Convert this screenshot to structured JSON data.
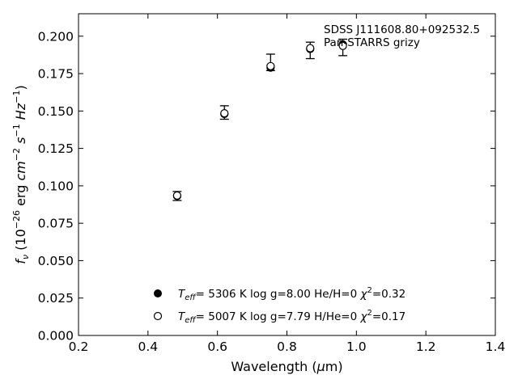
{
  "chart_data": {
    "type": "scatter",
    "title": "",
    "xlabel": "Wavelength (μm)",
    "ylabel": "f_ν (10^-26 erg cm^-2 s^-1 Hz^-1)",
    "xlim": [
      0.2,
      1.4
    ],
    "ylim": [
      0.0,
      0.215
    ],
    "xticks": [
      0.2,
      0.4,
      0.6,
      0.8,
      1.0,
      1.2,
      1.4
    ],
    "xtick_labels": [
      "0.2",
      "0.4",
      "0.6",
      "0.8",
      "1.0",
      "1.2",
      "1.4"
    ],
    "yticks": [
      0.0,
      0.025,
      0.05,
      0.075,
      0.1,
      0.125,
      0.15,
      0.175,
      0.2
    ],
    "ytick_labels": [
      "0.000",
      "0.025",
      "0.050",
      "0.075",
      "0.100",
      "0.125",
      "0.150",
      "0.175",
      "0.200"
    ],
    "grid": false,
    "annotation": [
      "SDSS J111608.80+092532.5",
      "Pan-STARRS grizy"
    ],
    "observed": {
      "x": [
        0.484,
        0.62,
        0.753,
        0.867,
        0.961
      ],
      "y": [
        0.0932,
        0.149,
        0.18,
        0.192,
        0.194
      ],
      "yerr_low": [
        0.003,
        0.0045,
        0.003,
        0.007,
        0.007
      ],
      "yerr_high": [
        0.003,
        0.0045,
        0.008,
        0.004,
        0.004
      ]
    },
    "series": [
      {
        "marker": "filled",
        "label": "T_eff= 5306 K  log g=8.00  He/H=0  χ²=0.32",
        "x": [
          0.484,
          0.62,
          0.753,
          0.867,
          0.961
        ],
        "y": [
          0.0932,
          0.148,
          0.179,
          0.1915,
          0.1945
        ]
      },
      {
        "marker": "open",
        "label": "T_eff= 5007 K  log g=7.79  H/He=0  χ²=0.17",
        "x": [
          0.484,
          0.62,
          0.753,
          0.867,
          0.961
        ],
        "y": [
          0.0935,
          0.1485,
          0.18,
          0.192,
          0.1935
        ]
      }
    ],
    "legend_location": "bottom-center"
  }
}
